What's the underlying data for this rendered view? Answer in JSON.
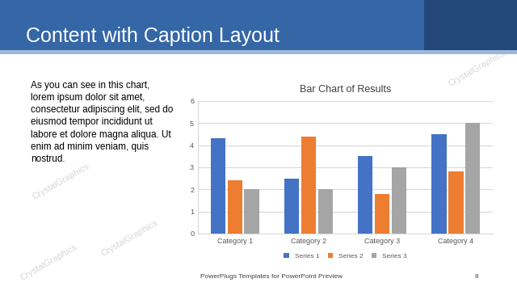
{
  "slide": {
    "title": "Content with Caption Layout",
    "caption_lines": [
      "As you can see in this chart,",
      "lorem ipsum dolor sit amet,",
      "consectetur adipiscing elit, sed do",
      "eiusmod tempor incididunt ut",
      "labore et dolore magna aliqua. Ut",
      "enim ad minim veniam, quis",
      "nostrud."
    ],
    "footer": "PowerPlugs Templates for PowerPoint Preview",
    "page": 8,
    "watermark": "CrystalGraphics"
  },
  "chart_data": {
    "type": "bar",
    "title": "Bar Chart of Results",
    "categories": [
      "Category 1",
      "Category 2",
      "Category 3",
      "Category 4"
    ],
    "series": [
      {
        "name": "Series 1",
        "color": "#4472c4",
        "values": [
          4.3,
          2.5,
          3.5,
          4.5
        ]
      },
      {
        "name": "Series 2",
        "color": "#ed7d31",
        "values": [
          2.4,
          4.4,
          1.8,
          2.8
        ]
      },
      {
        "name": "Series 3",
        "color": "#a5a5a5",
        "values": [
          2,
          2,
          3,
          5
        ]
      }
    ],
    "ylim": [
      0,
      6
    ],
    "yticks": [
      0,
      1,
      2,
      3,
      4,
      5,
      6
    ],
    "grid": true,
    "legend": "lower center"
  }
}
